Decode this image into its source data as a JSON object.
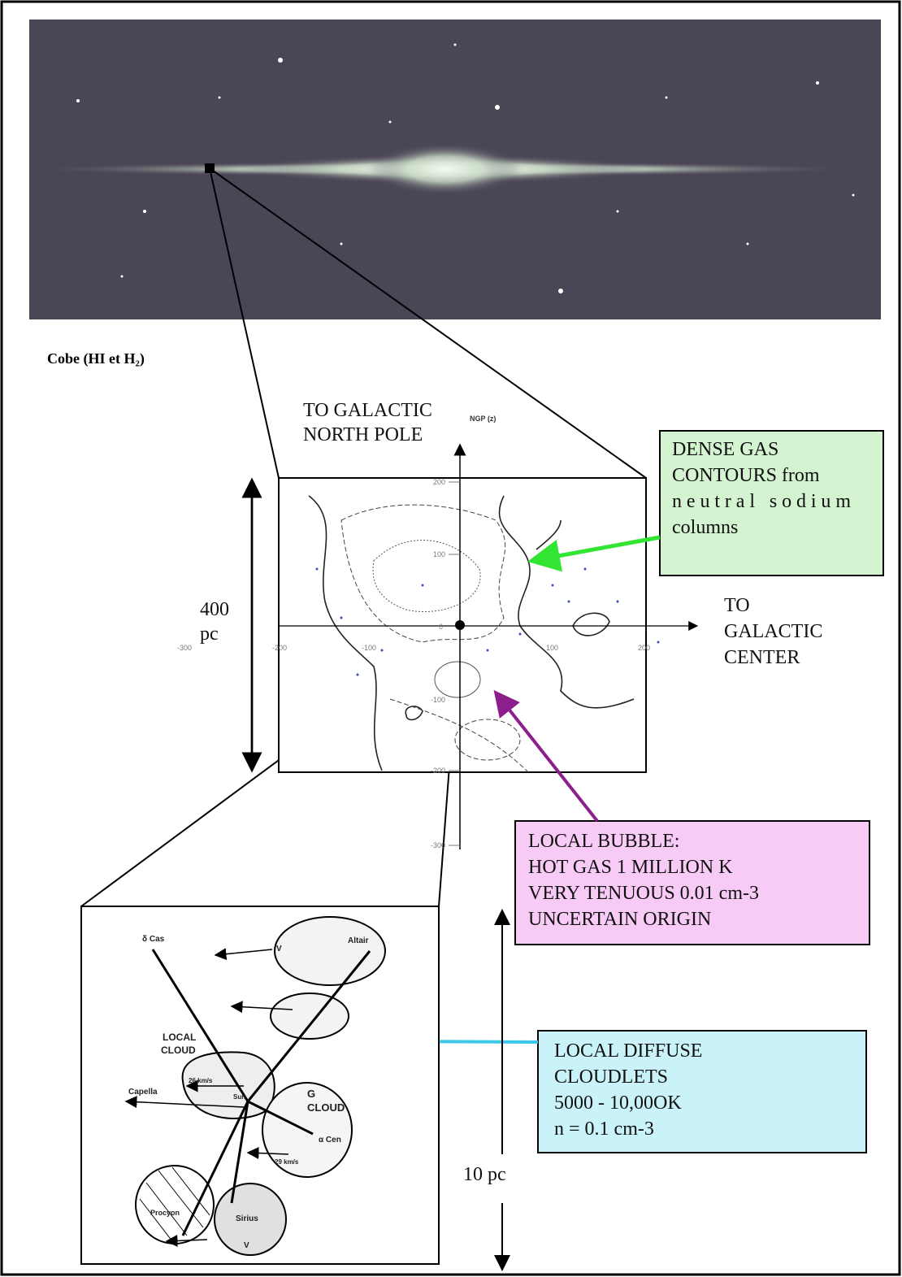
{
  "caption": "Cobe (HI et H₂)",
  "map": {
    "north_label": [
      "TO GALACTIC",
      "NORTH POLE"
    ],
    "ngp_label": "NGP (z)",
    "scale": {
      "value": "400",
      "unit": "pc"
    },
    "center_label": [
      "TO",
      "GALACTIC",
      "CENTER"
    ],
    "y_ticks": [
      "200",
      "100",
      "0",
      "-100",
      "-200",
      "-300"
    ],
    "x_ticks": [
      "-300",
      "-200",
      "-100",
      "100",
      "200"
    ]
  },
  "dense_gas": [
    "DENSE GAS",
    "CONTOURS from",
    "neutral sodium",
    "columns"
  ],
  "local_bubble": [
    "LOCAL BUBBLE:",
    "HOT GAS 1 MILLION K",
    "VERY TENUOUS 0.01 cm-3",
    "UNCERTAIN ORIGIN"
  ],
  "cloudlets": [
    "LOCAL DIFFUSE",
    "CLOUDLETS",
    "5000 - 10,00OK",
    "n = 0.1 cm-3"
  ],
  "inset_scale": "10 pc",
  "inset": {
    "labels": [
      "δ Cas",
      "Altair",
      "LOCAL",
      "CLOUD",
      "Capella",
      "26 km/s",
      "Sun",
      "G",
      "CLOUD",
      "α Cen",
      "29 km/s",
      "Procyon",
      "Sirius",
      "V",
      "V"
    ]
  }
}
